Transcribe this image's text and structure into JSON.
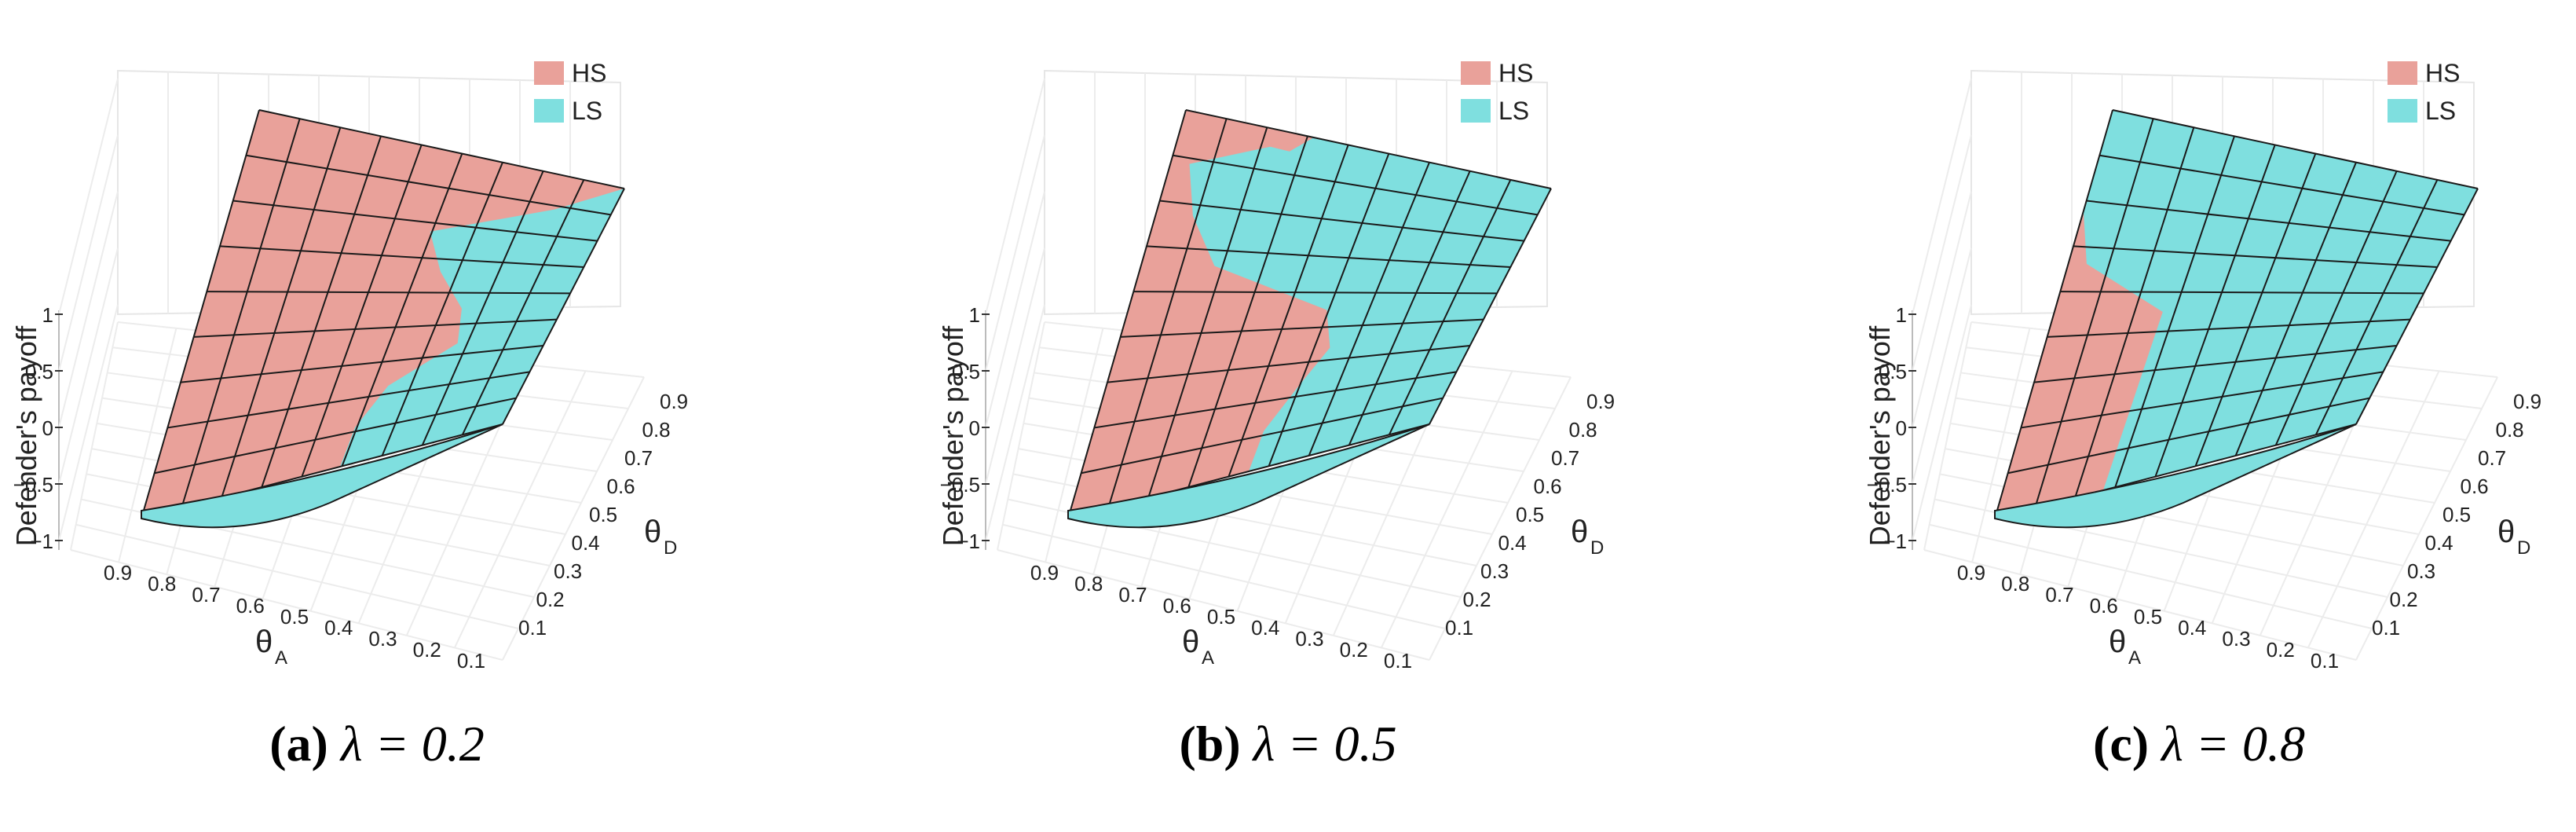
{
  "legend": {
    "hs": {
      "label": "HS",
      "color": "#e9a19a"
    },
    "ls": {
      "label": "LS",
      "color": "#7fdfdf"
    }
  },
  "axes": {
    "zlabel": "Defender's payoff",
    "xlabel": "θ",
    "xlabel_sub": "A",
    "ylabel": "θ",
    "ylabel_sub": "D",
    "z_ticks": [
      "1",
      "0.5",
      "0",
      "−0.5",
      "−1"
    ],
    "theta_a_ticks": [
      "0.9",
      "0.8",
      "0.7",
      "0.6",
      "0.5",
      "0.4",
      "0.3",
      "0.2",
      "0.1"
    ],
    "theta_d_ticks": [
      "0.9",
      "0.8",
      "0.7",
      "0.6",
      "0.5",
      "0.4",
      "0.3",
      "0.2",
      "0.1"
    ]
  },
  "chart_data": [
    {
      "type": "surface",
      "caption_tag": "(a)",
      "caption_expr": "λ = 0.2",
      "x_label": "θ_A",
      "y_label": "θ_D",
      "z_label": "Defender's payoff",
      "x_ticks": [
        0.9,
        0.8,
        0.7,
        0.6,
        0.5,
        0.4,
        0.3,
        0.2,
        0.1
      ],
      "y_ticks": [
        0.1,
        0.2,
        0.3,
        0.4,
        0.5,
        0.6,
        0.7,
        0.8,
        0.9
      ],
      "zlim": [
        -1,
        1
      ],
      "regions": [
        {
          "name": "HS",
          "description_share": 0.7
        },
        {
          "name": "LS",
          "description_share": 0.3
        }
      ]
    },
    {
      "type": "surface",
      "caption_tag": "(b)",
      "caption_expr": "λ = 0.5",
      "x_label": "θ_A",
      "y_label": "θ_D",
      "z_label": "Defender's payoff",
      "x_ticks": [
        0.9,
        0.8,
        0.7,
        0.6,
        0.5,
        0.4,
        0.3,
        0.2,
        0.1
      ],
      "y_ticks": [
        0.1,
        0.2,
        0.3,
        0.4,
        0.5,
        0.6,
        0.7,
        0.8,
        0.9
      ],
      "zlim": [
        -1,
        1
      ],
      "regions": [
        {
          "name": "HS",
          "description_share": 0.4
        },
        {
          "name": "LS",
          "description_share": 0.6
        }
      ]
    },
    {
      "type": "surface",
      "caption_tag": "(c)",
      "caption_expr": "λ = 0.8",
      "x_label": "θ_A",
      "y_label": "θ_D",
      "z_label": "Defender's payoff",
      "x_ticks": [
        0.9,
        0.8,
        0.7,
        0.6,
        0.5,
        0.4,
        0.3,
        0.2,
        0.1
      ],
      "y_ticks": [
        0.1,
        0.2,
        0.3,
        0.4,
        0.5,
        0.6,
        0.7,
        0.8,
        0.9
      ],
      "zlim": [
        -1,
        1
      ],
      "regions": [
        {
          "name": "HS",
          "description_share": 0.25
        },
        {
          "name": "LS",
          "description_share": 0.75
        }
      ]
    }
  ]
}
